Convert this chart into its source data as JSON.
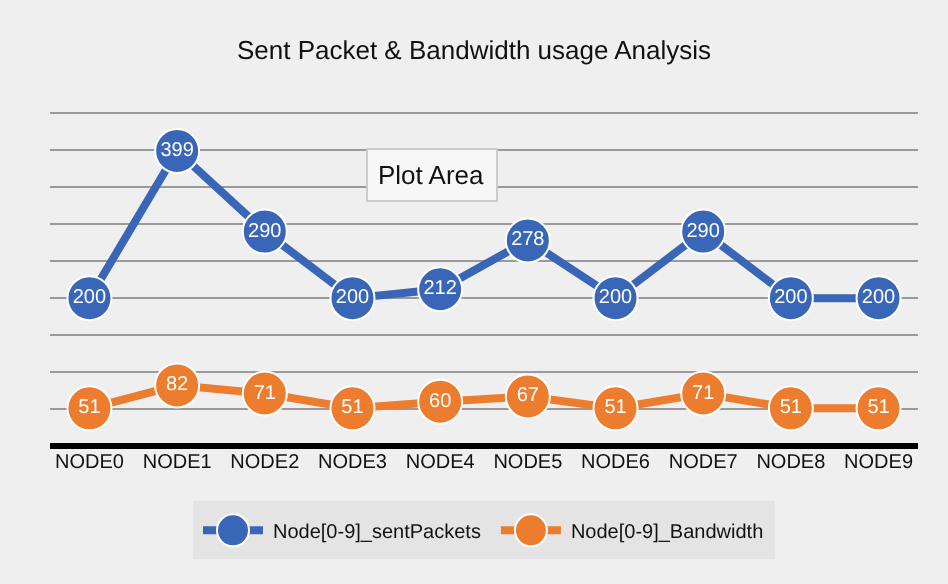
{
  "chart_data": {
    "type": "line",
    "title": "Sent Packet & Bandwidth usage Analysis",
    "categories": [
      "NODE0",
      "NODE1",
      "NODE2",
      "NODE3",
      "NODE4",
      "NODE5",
      "NODE6",
      "NODE7",
      "NODE8",
      "NODE9"
    ],
    "series": [
      {
        "name": "Node[0-9]_sentPackets",
        "color": "#3a66b8",
        "values": [
          200,
          399,
          290,
          200,
          212,
          278,
          200,
          290,
          200,
          200
        ]
      },
      {
        "name": "Node[0-9]_Bandwidth",
        "color": "#ec7d2e",
        "values": [
          51,
          82,
          71,
          51,
          60,
          67,
          51,
          71,
          51,
          51
        ]
      }
    ],
    "yticks": [
      {
        "value": 0,
        "label": null
      },
      {
        "value": 50,
        "label": null
      },
      {
        "value": 100,
        "label": null
      },
      {
        "value": 150,
        "label": null
      },
      {
        "value": 200,
        "label": null
      },
      {
        "value": 250,
        "label": null
      },
      {
        "value": 300,
        "label": null
      },
      {
        "value": 350,
        "label": null
      },
      {
        "value": 400,
        "label": null
      },
      {
        "value": 450,
        "label": null
      }
    ],
    "tick_labels": "x",
    "grid": "y",
    "legend": "bottom",
    "marker": "circle",
    "line_style": "solid",
    "data_labels": true,
    "annotations": [
      "Plot Area"
    ]
  }
}
